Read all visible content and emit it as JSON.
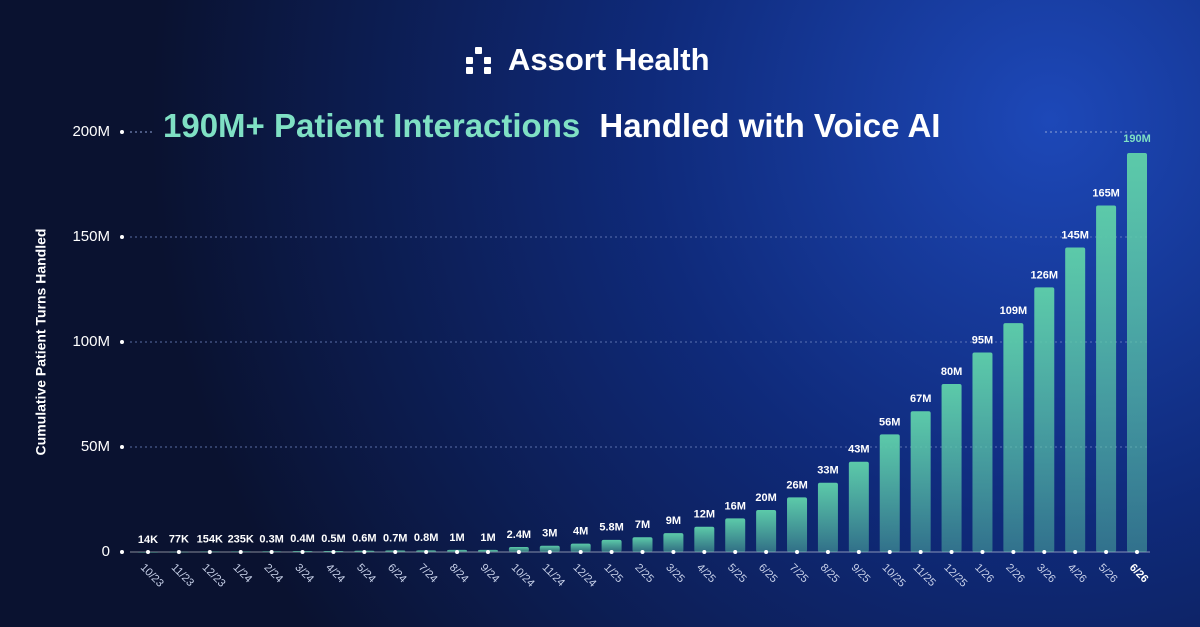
{
  "brand": "Assort Health",
  "chart_data": {
    "type": "bar",
    "title_highlight": "190M+ Patient Interactions",
    "title_rest": "Handled with Voice AI",
    "y_label": "Cumulative Patient Turns Handled",
    "categories": [
      "10/23",
      "11/23",
      "12/23",
      "1/24",
      "2/24",
      "3/24",
      "4/24",
      "5/24",
      "6/24",
      "7/24",
      "8/24",
      "9/24",
      "10/24",
      "11/24",
      "12/24",
      "1/25",
      "2/25",
      "3/25",
      "4/25",
      "5/25",
      "6/25",
      "7/25",
      "8/25",
      "9/25",
      "10/25",
      "11/25",
      "12/25",
      "1/26",
      "2/26",
      "3/26",
      "4/26",
      "5/26",
      "6/26"
    ],
    "values": [
      14000,
      77000,
      154000,
      235000,
      300000,
      400000,
      500000,
      600000,
      700000,
      800000,
      1000000,
      1000000,
      2400000,
      3000000,
      4000000,
      5800000,
      7000000,
      9000000,
      12000000,
      16000000,
      20000000,
      26000000,
      33000000,
      43000000,
      56000000,
      67000000,
      80000000,
      95000000,
      109000000,
      126000000,
      145000000,
      165000000,
      190000000
    ],
    "value_labels": [
      "14K",
      "77K",
      "154K",
      "235K",
      "0.3M",
      "0.4M",
      "0.5M",
      "0.6M",
      "0.7M",
      "0.8M",
      "1M",
      "1M",
      "2.4M",
      "3M",
      "4M",
      "5.8M",
      "7M",
      "9M",
      "12M",
      "16M",
      "20M",
      "26M",
      "33M",
      "43M",
      "56M",
      "67M",
      "80M",
      "95M",
      "109M",
      "126M",
      "145M",
      "165M",
      "190M"
    ],
    "color": "#5ccaa9",
    "highlight_color": "#7fe0c4",
    "ylim": [
      0,
      200000000
    ],
    "yticks": [
      0,
      {
        "value": 50000000,
        "label": "50M"
      },
      {
        "value": 100000000,
        "label": "100M"
      },
      {
        "value": 150000000,
        "label": "150M"
      },
      {
        "value": 200000000,
        "label": "200M"
      }
    ],
    "grid": true
  }
}
